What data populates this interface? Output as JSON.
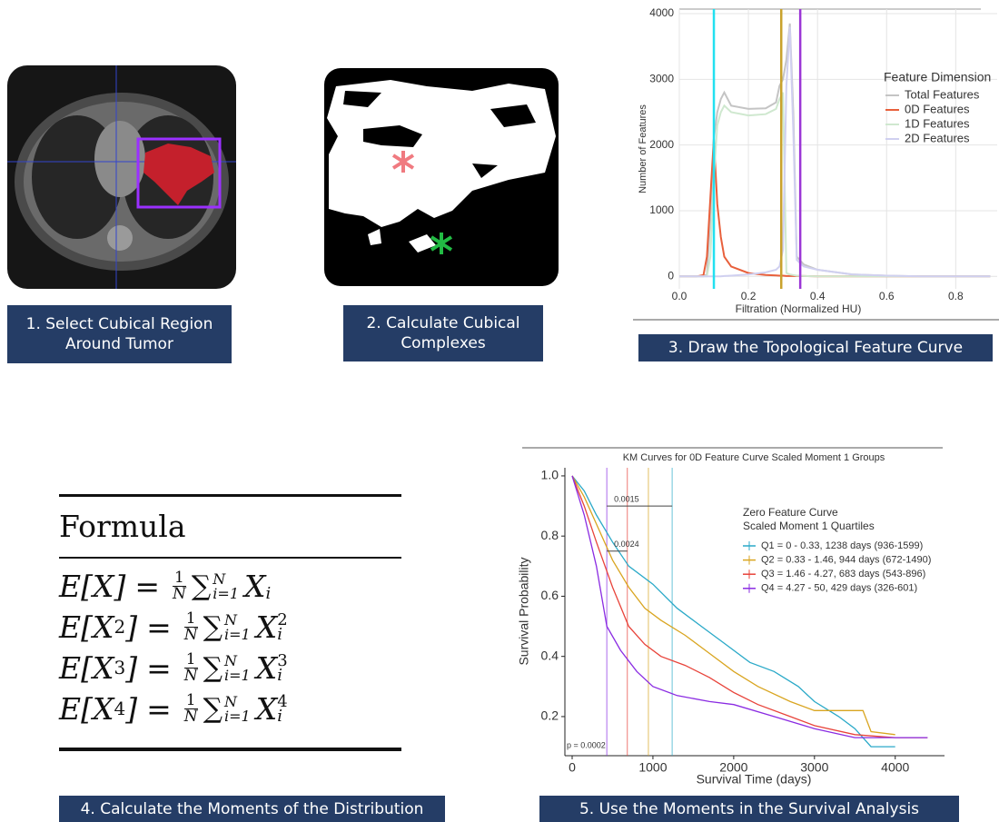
{
  "steps": [
    "1. Select Cubical Region Around Tumor",
    "2. Calculate Cubical Complexes",
    "3. Draw the Topological Feature Curve",
    "4. Calculate the Moments of the Distribution",
    "5. Use the Moments in the Survival Analysis"
  ],
  "formula": {
    "title": "Formula",
    "equations": [
      {
        "lhs_open": "E[X",
        "lhs_close": "]",
        "equals": "=",
        "frac_num": "1",
        "frac_den": "N",
        "sum": "∑",
        "sum_sub": "i=1",
        "sum_sup": "N",
        "term": "X",
        "term_sub": "i"
      },
      {
        "lhs_open": "E[X",
        "lhs_sup": "2",
        "lhs_close": "]",
        "equals": "=",
        "frac_num": "1",
        "frac_den": "N",
        "sum": "∑",
        "sum_sub": "i=1",
        "sum_sup": "N",
        "term": "X",
        "term_sub": "i",
        "term_sup": "2"
      },
      {
        "lhs_open": "E[X",
        "lhs_sup": "3",
        "lhs_close": "]",
        "equals": "=",
        "frac_num": "1",
        "frac_den": "N",
        "sum": "∑",
        "sum_sub": "i=1",
        "sum_sup": "N",
        "term": "X",
        "term_sub": "i",
        "term_sup": "3"
      },
      {
        "lhs_open": "E[X",
        "lhs_sup": "4",
        "lhs_close": "]",
        "equals": "=",
        "frac_num": "1",
        "frac_den": "N",
        "sum": "∑",
        "sum_sub": "i=1",
        "sum_sup": "N",
        "term": "X",
        "term_sub": "i",
        "term_sup": "4"
      }
    ]
  },
  "chart_data": [
    {
      "type": "line",
      "xlabel": "Filtration (Normalized HU)",
      "ylabel": "Number of Features",
      "legend_title": "Feature Dimension",
      "xlim": [
        0,
        0.92
      ],
      "ylim": [
        -190,
        4070
      ],
      "xticks": [
        {
          "value": 0,
          "label": "0.0"
        },
        0.2,
        0.4,
        0.6,
        0.8
      ],
      "yticks": [
        0,
        1000,
        2000,
        3000,
        4000
      ],
      "grid": true,
      "x": [
        0,
        0.05,
        0.07,
        0.08,
        0.09,
        0.1,
        0.11,
        0.12,
        0.13,
        0.15,
        0.2,
        0.25,
        0.28,
        0.29,
        0.3,
        0.31,
        0.32,
        0.33,
        0.34,
        0.36,
        0.4,
        0.5,
        0.6,
        0.7,
        0.8,
        0.9
      ],
      "series": [
        {
          "name": "Total Features",
          "color": "#c4c4c4",
          "values": [
            0,
            0,
            0,
            30,
            900,
            2100,
            2500,
            2700,
            2800,
            2600,
            2550,
            2560,
            2650,
            2900,
            3000,
            3300,
            3850,
            2500,
            300,
            180,
            100,
            30,
            10,
            0,
            0,
            0
          ]
        },
        {
          "name": "0D Features",
          "color": "#e8603c",
          "values": [
            0,
            0,
            20,
            300,
            1200,
            2100,
            1100,
            600,
            300,
            150,
            50,
            20,
            15,
            10,
            10,
            5,
            5,
            5,
            5,
            5,
            0,
            0,
            0,
            0,
            0,
            0
          ]
        },
        {
          "name": "1D Features",
          "color": "#cfe8cf",
          "values": [
            0,
            0,
            0,
            0,
            300,
            1500,
            2300,
            2500,
            2600,
            2500,
            2450,
            2470,
            2550,
            2700,
            2800,
            50,
            30,
            20,
            10,
            5,
            0,
            0,
            0,
            0,
            0,
            0
          ]
        },
        {
          "name": "2D Features",
          "color": "#d0d0f0",
          "values": [
            0,
            0,
            0,
            0,
            0,
            0,
            0,
            0,
            5,
            10,
            30,
            60,
            100,
            150,
            400,
            2900,
            3800,
            2200,
            250,
            150,
            100,
            30,
            10,
            0,
            0,
            0
          ]
        }
      ],
      "thresholds": [
        {
          "x": 0.1,
          "color": "#22e0f0"
        },
        {
          "x": 0.295,
          "color": "#c9a22c"
        },
        {
          "x": 0.35,
          "color": "#9b35d6"
        }
      ]
    },
    {
      "type": "step",
      "title": "KM Curves for 0D Feature Curve Scaled Moment 1 Groups",
      "xlabel": "Survival Time (days)",
      "ylabel": "Survival Probability",
      "legend_title": [
        "Zero Feature Curve",
        "Scaled Moment 1 Quartiles"
      ],
      "xlim": [
        -90,
        4610
      ],
      "ylim": [
        0.07,
        1.027
      ],
      "xticks": [
        0,
        1000,
        2000,
        3000,
        4000
      ],
      "yticks": [
        0.2,
        0.4,
        0.6,
        0.8,
        {
          "value": 1,
          "label": "1.0"
        }
      ],
      "pvalue": "p =  0.0002",
      "annotations": [
        {
          "text": "0.0015",
          "x0": 429,
          "x1": 1238,
          "y": 0.9
        },
        {
          "text": "0.0024",
          "x0": 429,
          "x1": 683,
          "y": 0.75
        }
      ],
      "series": [
        {
          "name": "Q1 = 0 - 0.33, 1238 days (936-1599)",
          "color": "#2aa9c8",
          "median": 1238,
          "x": [
            0,
            150,
            300,
            500,
            700,
            1000,
            1300,
            1600,
            1900,
            2200,
            2500,
            2800,
            3000,
            3300,
            3500,
            3700,
            4000
          ],
          "values": [
            1,
            0.95,
            0.87,
            0.78,
            0.7,
            0.64,
            0.56,
            0.5,
            0.44,
            0.38,
            0.35,
            0.3,
            0.25,
            0.2,
            0.16,
            0.1,
            0.1
          ]
        },
        {
          "name": "Q2 = 0.33 - 1.46, 944 days (672-1490)",
          "color": "#d9a520",
          "median": 944,
          "x": [
            0,
            150,
            300,
            500,
            700,
            900,
            1100,
            1400,
            1700,
            2000,
            2300,
            2700,
            3000,
            3600,
            3700,
            4000
          ],
          "values": [
            1,
            0.93,
            0.84,
            0.72,
            0.63,
            0.56,
            0.52,
            0.47,
            0.41,
            0.35,
            0.3,
            0.25,
            0.22,
            0.22,
            0.15,
            0.14
          ]
        },
        {
          "name": "Q3 = 1.46 - 4.27, 683 days (543-896)",
          "color": "#e8433a",
          "median": 683,
          "x": [
            0,
            150,
            300,
            500,
            700,
            900,
            1100,
            1400,
            1700,
            2000,
            2300,
            2700,
            3000,
            3500,
            4000,
            4400
          ],
          "values": [
            1,
            0.9,
            0.78,
            0.63,
            0.5,
            0.44,
            0.4,
            0.37,
            0.33,
            0.28,
            0.24,
            0.2,
            0.17,
            0.14,
            0.13,
            0.13
          ]
        },
        {
          "name": "Q4 = 4.27 - 50, 429 days (326-601)",
          "color": "#8a2be2",
          "median": 429,
          "x": [
            0,
            150,
            300,
            430,
            600,
            800,
            1000,
            1300,
            1700,
            2000,
            2500,
            3000,
            3500,
            4000,
            4400
          ],
          "values": [
            1,
            0.87,
            0.7,
            0.5,
            0.42,
            0.35,
            0.3,
            0.27,
            0.25,
            0.24,
            0.2,
            0.16,
            0.13,
            0.13,
            0.13
          ]
        }
      ]
    }
  ]
}
